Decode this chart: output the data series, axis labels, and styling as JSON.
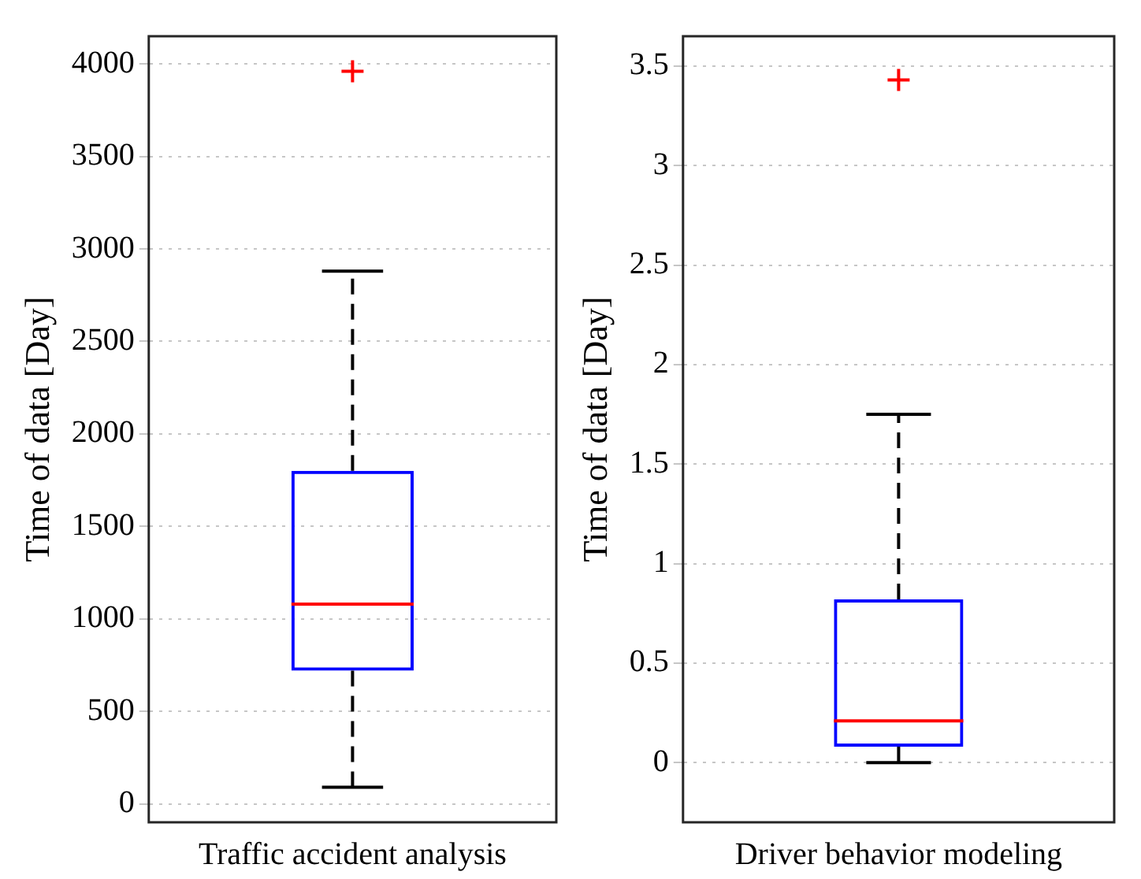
{
  "chart_data": [
    {
      "type": "box",
      "categories": [
        "Traffic accident analysis"
      ],
      "ylabel": "Time of data [Day]",
      "ylim": [
        -100,
        4150
      ],
      "yticks": [
        0,
        500,
        1000,
        1500,
        2000,
        2500,
        3000,
        3500,
        4000
      ],
      "grid": "y",
      "legend": false,
      "series": [
        {
          "color": "#0000ff",
          "boxes": [
            {
              "low": 90,
              "q1": 720,
              "median": 1080,
              "q3": 1800,
              "high": 2880,
              "outliers": [
                3960
              ]
            }
          ]
        }
      ]
    },
    {
      "type": "box",
      "categories": [
        "Driver behavior modeling"
      ],
      "ylabel": "Time of data [Day]",
      "ylim": [
        -0.3,
        3.65
      ],
      "yticks": [
        0,
        0.5,
        1,
        1.5,
        2,
        2.5,
        3,
        3.5
      ],
      "grid": "y",
      "legend": false,
      "series": [
        {
          "color": "#0000ff",
          "boxes": [
            {
              "low": 0,
              "q1": 0.08,
              "median": 0.21,
              "q3": 0.82,
              "high": 1.75,
              "outliers": [
                3.43
              ]
            }
          ]
        }
      ]
    }
  ]
}
